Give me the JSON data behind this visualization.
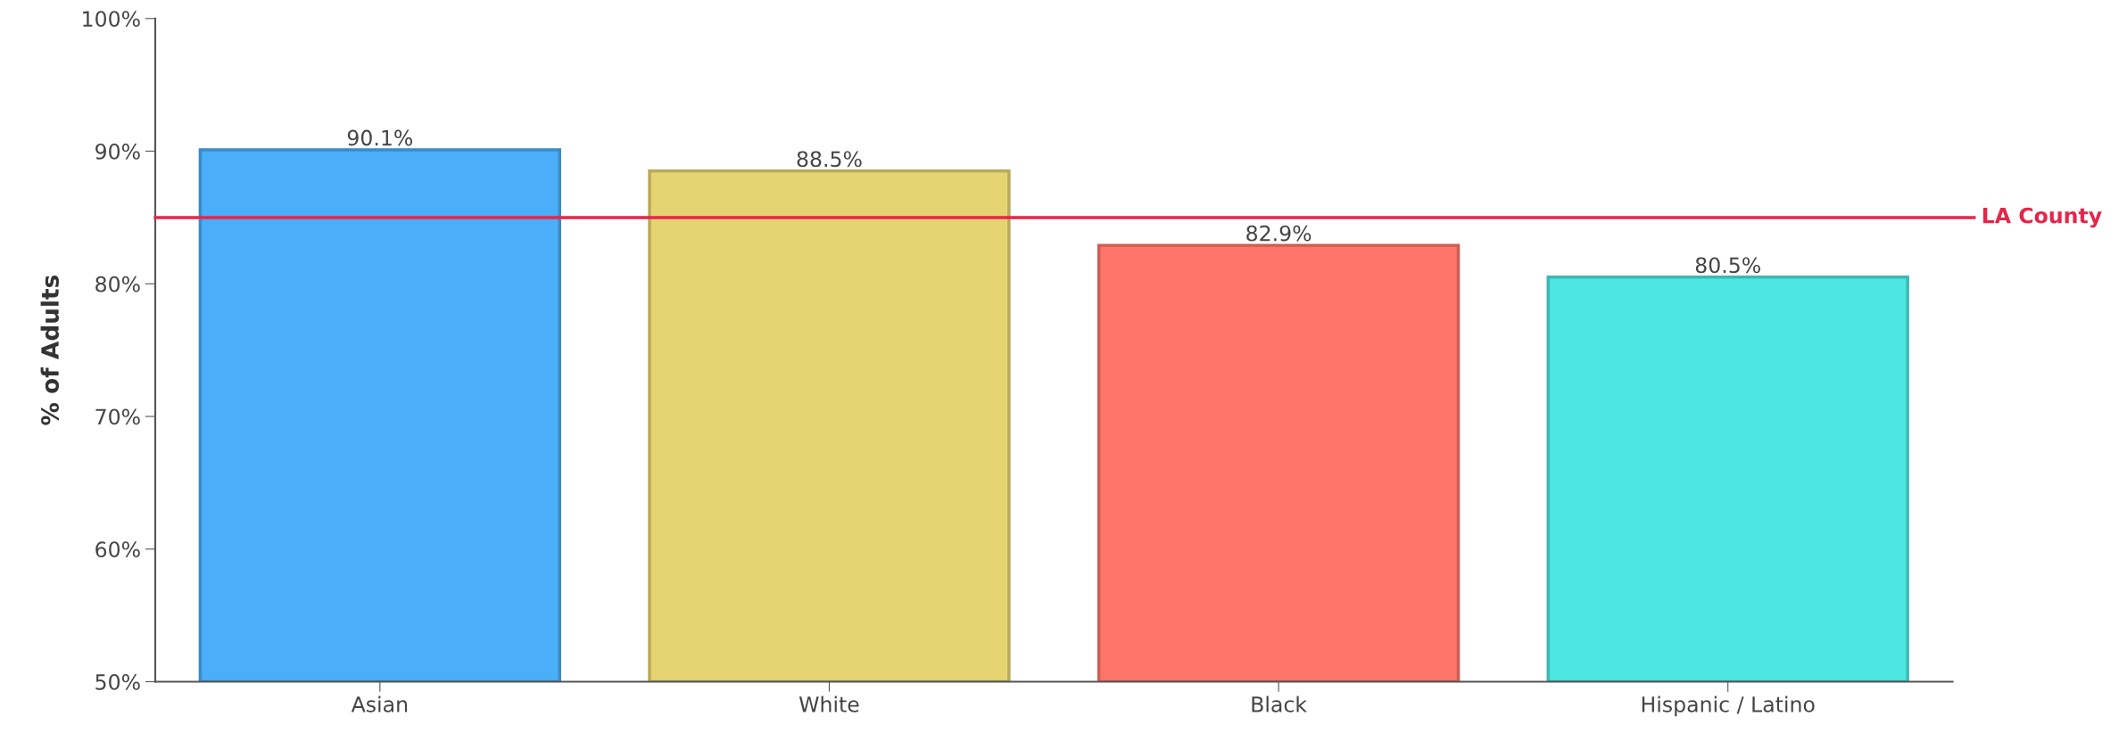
{
  "chart_data": {
    "type": "bar",
    "ylabel": "% of Adults",
    "categories": [
      "Asian",
      "White",
      "Black",
      "Hispanic / Latino"
    ],
    "values": [
      90.1,
      88.5,
      82.9,
      80.5
    ],
    "colors": [
      "#4aaef8",
      "#e6d472",
      "#ff756a",
      "#4de6e2"
    ],
    "value_labels": [
      "90.1%",
      "88.5%",
      "82.9%",
      "80.5%"
    ],
    "ylim": [
      50,
      100
    ],
    "yticks": [
      {
        "value": 50,
        "label": "50%"
      },
      {
        "value": 60,
        "label": "60%"
      },
      {
        "value": 70,
        "label": "70%"
      },
      {
        "value": 80,
        "label": "80%"
      },
      {
        "value": 90,
        "label": "90%"
      },
      {
        "value": 100,
        "label": "100%"
      }
    ],
    "ref_lines": [
      {
        "axis": "y",
        "value": 85,
        "label": "LA County",
        "color": "#e3264a"
      }
    ],
    "grid": false,
    "legend": false
  }
}
